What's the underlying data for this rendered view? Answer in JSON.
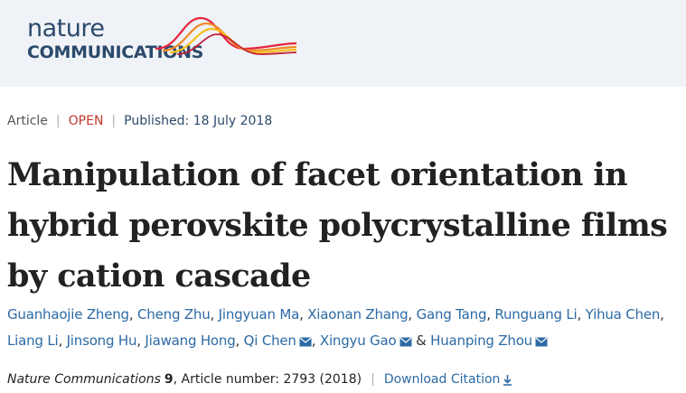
{
  "logo": {
    "line1": "nature",
    "line2": "COMMUNICATIONS"
  },
  "meta": {
    "type": "Article",
    "access": "OPEN",
    "published": "Published: 18 July 2018"
  },
  "title": "Manipulation of facet orientation in hybrid perovskite polycrystalline films by cation cascade",
  "authors": [
    {
      "name": "Guanhaojie Zheng",
      "mail": false,
      "after": ", "
    },
    {
      "name": "Cheng Zhu",
      "mail": false,
      "after": ", "
    },
    {
      "name": "Jingyuan Ma",
      "mail": false,
      "after": ", "
    },
    {
      "name": "Xiaonan Zhang",
      "mail": false,
      "after": ", "
    },
    {
      "name": "Gang Tang",
      "mail": false,
      "after": ", "
    },
    {
      "name": "Runguang Li",
      "mail": false,
      "after": ", "
    },
    {
      "name": "Yihua Chen",
      "mail": false,
      "after": ", "
    },
    {
      "name": "Liang Li",
      "mail": false,
      "after": ", "
    },
    {
      "name": "Jinsong Hu",
      "mail": false,
      "after": ", "
    },
    {
      "name": "Jiawang Hong",
      "mail": false,
      "after": ", "
    },
    {
      "name": "Qi Chen",
      "mail": true,
      "after": ", "
    },
    {
      "name": "Xingyu Gao",
      "mail": true,
      "after": " & "
    },
    {
      "name": "Huanping Zhou",
      "mail": true,
      "after": ""
    }
  ],
  "citation": {
    "journal": "Nature Communications",
    "volume": "9",
    "article_text": ", Article number: 2793 (2018)",
    "download_label": "Download Citation"
  },
  "icons": {
    "mail": "mail-icon",
    "download": "download-icon"
  },
  "colors": {
    "link": "#2c6aa5",
    "open": "#c0392b",
    "header_bg": "#eff3f7"
  }
}
